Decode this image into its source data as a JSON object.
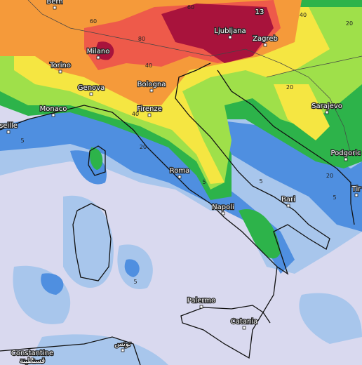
{
  "cities": [
    "Bern",
    "Milano",
    "Torino",
    "Genova",
    "Bologna",
    "Monaco",
    "Firenze",
    "seille",
    "Roma",
    "Napoli",
    "Bari",
    "Palermo",
    "Catania",
    "Ljubljana",
    "Zagreb",
    "Sarajevo",
    "Podgoric",
    "Tir",
    "Constantine",
    "قسنطينة",
    "تونس"
  ],
  "contour_labels": [
    "60",
    "60",
    "40",
    "40",
    "80",
    "20",
    "20",
    "40",
    "20",
    "20",
    "5",
    "5",
    "5",
    "5",
    "5",
    "13"
  ]
}
